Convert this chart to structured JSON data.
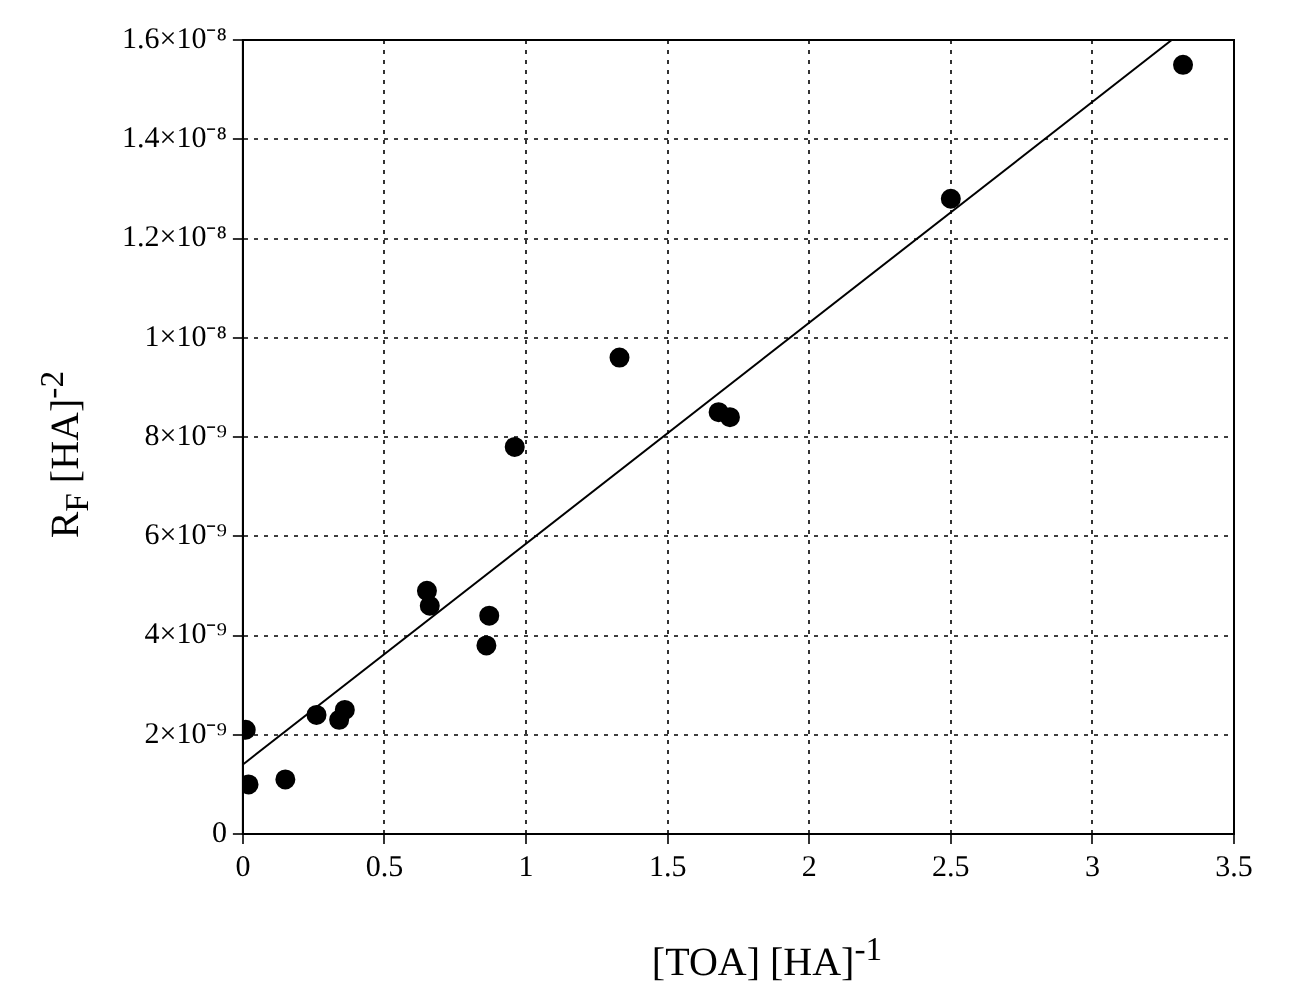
{
  "chart_data": {
    "type": "scatter",
    "xlabel": "[TOA]  [HA]$^{-1}$",
    "ylabel": "R$_{F}$ [HA]$^{-2}$",
    "xlim": [
      0,
      3.5
    ],
    "xticks": [
      0,
      0.5,
      1,
      1.5,
      2,
      2.5,
      3,
      3.5
    ],
    "ylim": [
      0,
      1.6e-08
    ],
    "yticks": [
      0,
      {
        "value": 2e-09,
        "label": "2×10⁻⁹"
      },
      {
        "value": 4e-09,
        "label": "4×10⁻⁹"
      },
      {
        "value": 6e-09,
        "label": "6×10⁻⁹"
      },
      {
        "value": 8e-09,
        "label": "8×10⁻⁹"
      },
      {
        "value": 1e-08,
        "label": "1×10⁻⁸"
      },
      {
        "value": 1.2e-08,
        "label": "1.2×10⁻⁸"
      },
      {
        "value": 1.4e-08,
        "label": "1.4×10⁻⁸"
      },
      {
        "value": 1.6e-08,
        "label": "1.6×10⁻⁸"
      }
    ],
    "grid": true,
    "marker": "circle",
    "series": [
      {
        "color": "#000000",
        "x": [
          0.01,
          0.02,
          0.15,
          0.26,
          0.34,
          0.36,
          0.65,
          0.66,
          0.86,
          0.87,
          0.96,
          1.33,
          1.68,
          1.72,
          2.5,
          3.32
        ],
        "values": [
          2.1e-09,
          1e-09,
          1.1e-09,
          2.4e-09,
          2.3e-09,
          2.5e-09,
          4.9e-09,
          4.6e-09,
          3.8e-09,
          4.4e-09,
          7.8e-09,
          9.6e-09,
          8.5e-09,
          8.4e-09,
          1.28e-08,
          1.55e-08
        ]
      },
      {
        "type": "line",
        "marker": "none",
        "color": "#000000",
        "x": [
          0,
          3.28
        ],
        "values": [
          1.4e-09,
          1.6e-08
        ]
      }
    ]
  }
}
